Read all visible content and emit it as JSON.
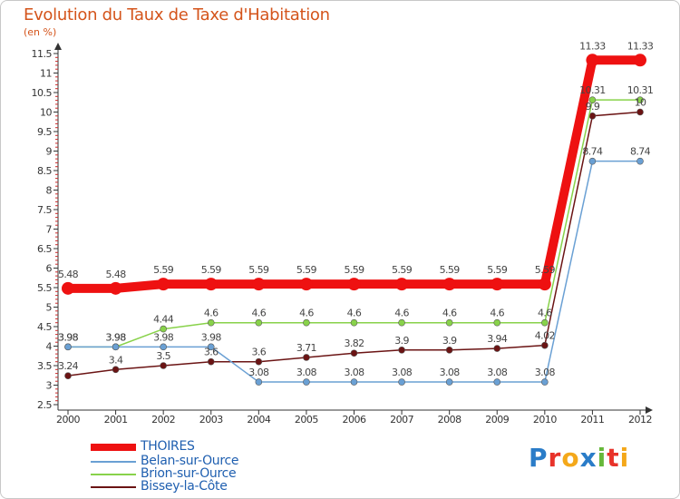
{
  "chart_data": {
    "type": "line",
    "title": "Evolution du Taux de Taxe d'Habitation",
    "subtitle": "(en %)",
    "xlabel": "",
    "ylabel": "(en %)",
    "ylim": [
      2.5,
      11.5
    ],
    "yticks": [
      "2.5",
      "3",
      "3.5",
      "4",
      "4.5",
      "5",
      "5.5",
      "6",
      "6.5",
      "7",
      "7.5",
      "8",
      "8.5",
      "9",
      "9.5",
      "10",
      "10.5",
      "11",
      "11.5"
    ],
    "x": [
      "2000",
      "2001",
      "2002",
      "2003",
      "2004",
      "2005",
      "2006",
      "2007",
      "2008",
      "2009",
      "2010",
      "2011",
      "2012"
    ],
    "series": [
      {
        "name": "Bissey-la-Côte",
        "color": "#6b1414",
        "values": [
          3.24,
          3.4,
          3.5,
          3.6,
          3.6,
          3.71,
          3.82,
          3.9,
          3.9,
          3.94,
          4.02,
          9.9,
          10
        ],
        "labels": [
          "3.24",
          "3.4",
          "3.5",
          "3.6",
          "3.6",
          "3.71",
          "3.82",
          "3.9",
          "3.9",
          "3.94",
          "4.02",
          "9.9",
          "10"
        ]
      },
      {
        "name": "Brion-sur-Ource",
        "color": "#88d24a",
        "values": [
          3.98,
          3.98,
          4.44,
          4.6,
          4.6,
          4.6,
          4.6,
          4.6,
          4.6,
          4.6,
          4.6,
          10.31,
          10.31
        ],
        "labels": [
          "3.98",
          "3.98",
          "4.44",
          "4.6",
          "4.6",
          "4.6",
          "4.6",
          "4.6",
          "4.6",
          "4.6",
          "4.6",
          "10.31",
          "10.31"
        ]
      },
      {
        "name": "Belan-sur-Ource",
        "color": "#6aa0d4",
        "values": [
          3.98,
          3.98,
          3.98,
          3.98,
          3.08,
          3.08,
          3.08,
          3.08,
          3.08,
          3.08,
          3.08,
          8.74,
          8.74
        ],
        "labels": [
          "3.98",
          "3.98",
          "3.98",
          "3.98",
          "3.08",
          "3.08",
          "3.08",
          "3.08",
          "3.08",
          "3.08",
          "3.08",
          "8.74",
          "8.74"
        ]
      },
      {
        "name": "THOIRES",
        "color": "#ee1111",
        "values": [
          5.48,
          5.48,
          5.59,
          5.59,
          5.59,
          5.59,
          5.59,
          5.59,
          5.59,
          5.59,
          5.59,
          11.33,
          11.33
        ],
        "labels": [
          "5.48",
          "5.48",
          "5.59",
          "5.59",
          "5.59",
          "5.59",
          "5.59",
          "5.59",
          "5.59",
          "5.59",
          "5.59",
          "11.33",
          "11.33"
        ]
      }
    ],
    "legend": [
      "THOIRES",
      "Belan-sur-Ource",
      "Brion-sur-Ource",
      "Bissey-la-Côte"
    ],
    "legend_position": "bottom-left",
    "grid": false
  },
  "brand": {
    "text": "Proxiti",
    "letters": [
      "P",
      "r",
      "o",
      "x",
      "i",
      "t",
      "i"
    ],
    "colors": [
      "#2a7cc8",
      "#e8332a",
      "#f4a81a",
      "#2a7cc8",
      "#66b83a",
      "#e8332a",
      "#f4a81a"
    ]
  }
}
